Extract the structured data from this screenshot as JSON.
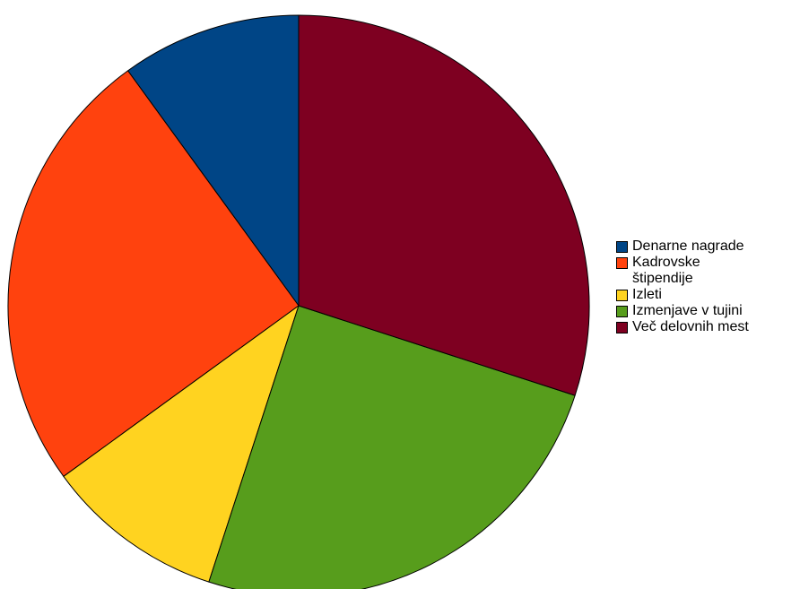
{
  "chart_data": {
    "type": "pie",
    "start_angle": "12 o'clock",
    "direction": "counter-clockwise",
    "slices": [
      {
        "label": "Denarne nagrade",
        "value": 10,
        "color": "#004586"
      },
      {
        "label": "Kadrovske štipendije",
        "value": 25,
        "color": "#ff420e"
      },
      {
        "label": "Izleti",
        "value": 10,
        "color": "#ffd320"
      },
      {
        "label": "Izmenjave v tujini",
        "value": 25,
        "color": "#579d1c"
      },
      {
        "label": "Več delovnih mest",
        "value": 30,
        "color": "#7e0021"
      }
    ],
    "legend_placement": "right"
  }
}
